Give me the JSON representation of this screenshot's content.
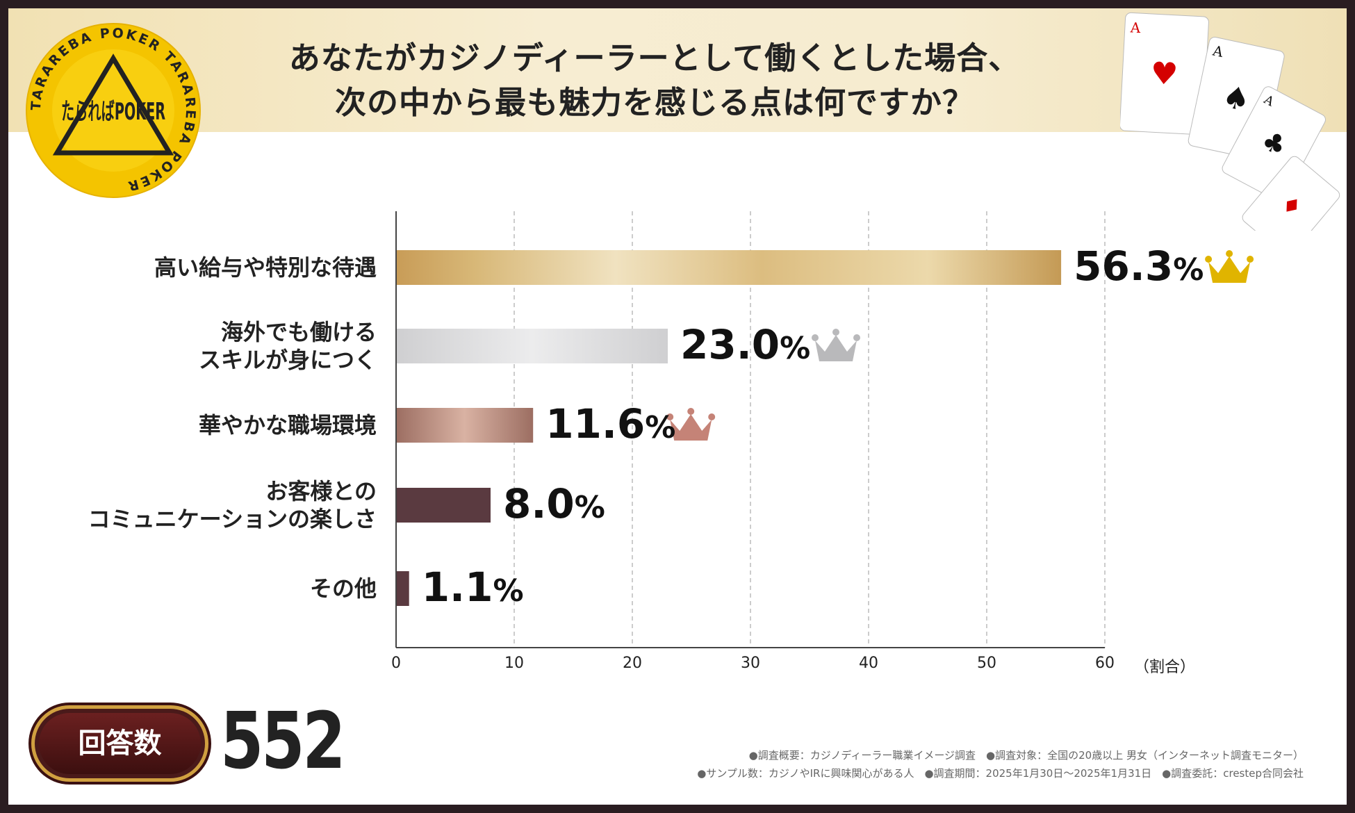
{
  "header": {
    "title_line1": "あなたがカジノディーラーとして働くとした場合、",
    "title_line2": "次の中から最も魅力を感じる点は何ですか？"
  },
  "badge": {
    "main": "たらればPOKER",
    "ring_text": "TARAREBA POKER TARAREBA POKER"
  },
  "chart_data": {
    "type": "bar",
    "orientation": "horizontal",
    "title": "あなたがカジノディーラーとして働くとした場合、次の中から最も魅力を感じる点は何ですか？",
    "categories": [
      [
        "高い給与や特別な待遇"
      ],
      [
        "海外でも働ける",
        "スキルが身につく"
      ],
      [
        "華やかな職場環境"
      ],
      [
        "お客様との",
        "コミュニケーションの楽しさ"
      ],
      [
        "その他"
      ]
    ],
    "values": [
      56.3,
      23.0,
      11.6,
      8.0,
      1.1
    ],
    "value_labels": [
      {
        "num": "56.3",
        "pct": "%"
      },
      {
        "num": "23.0",
        "pct": "%"
      },
      {
        "num": "11.6",
        "pct": "%"
      },
      {
        "num": "8.0",
        "pct": "%"
      },
      {
        "num": "1.1",
        "pct": "%"
      }
    ],
    "xlim": [
      0,
      60
    ],
    "xticks": [
      "0",
      "10",
      "20",
      "30",
      "40",
      "50",
      "60"
    ],
    "xlabel": "（割合）",
    "grid": true,
    "bar_colors": [
      [
        "#c9a05c",
        "#efdfb8",
        "#c9a05c"
      ],
      [
        "#cfcfd1",
        "#ececed",
        "#cfcfd1"
      ],
      [
        "#9c6e62",
        "#d9b2a3",
        "#9c6e62"
      ],
      [
        "#5a3a40",
        "#5a3a40",
        "#5a3a40"
      ],
      [
        "#5a3a40",
        "#5a3a40",
        "#5a3a40"
      ]
    ],
    "crowns": [
      {
        "rank": 1,
        "color": "#e0b400"
      },
      {
        "rank": 2,
        "color": "#b9b9bb"
      },
      {
        "rank": 3,
        "color": "#c58377"
      }
    ]
  },
  "responses": {
    "label": "回答数",
    "count": "552"
  },
  "notes": {
    "line1": "●調査概要：カジノディーラー職業イメージ調査　●調査対象：全国の20歳以上 男女（インターネット調査モニター）",
    "line2": "●サンプル数：カジノやIRに興味関心がある人　●調査期間：2025年1月30日～2025年1月31日　●調査委託：crestep合同会社"
  },
  "cards": {
    "rank": "A",
    "suits": [
      "♥",
      "♠",
      "♣",
      "♦"
    ]
  }
}
